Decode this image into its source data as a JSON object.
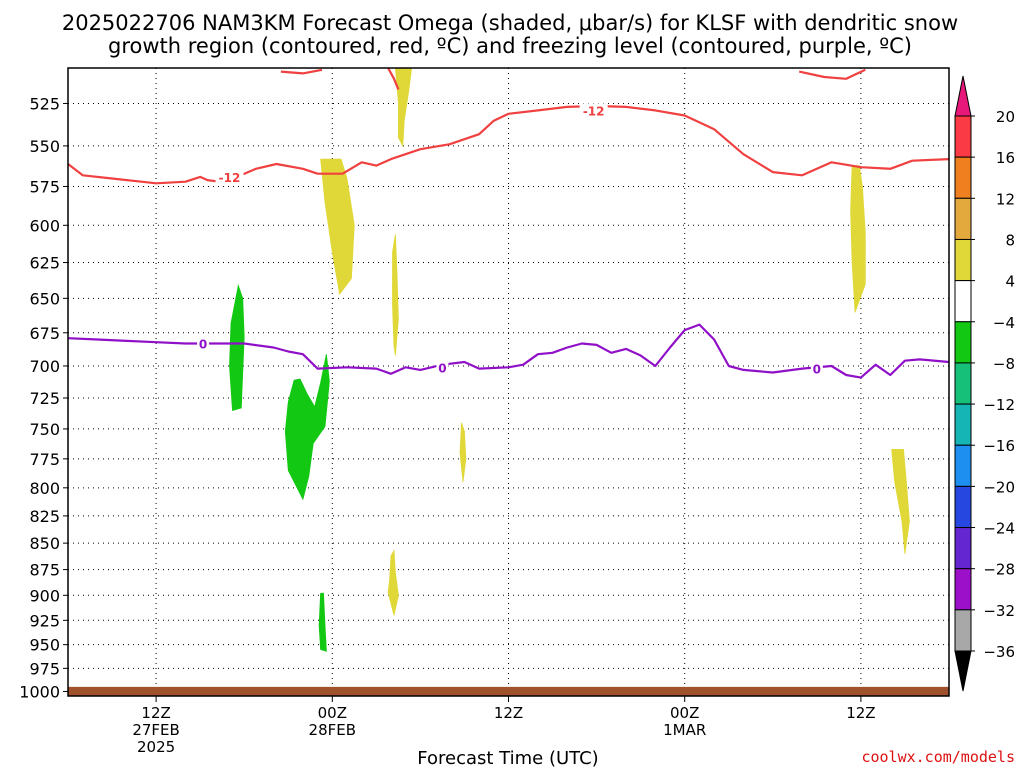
{
  "title_line1": "2025022706 NAM3KM Forecast Omega (shaded, μbar/s) for KLSF with dendritic snow",
  "title_line2": "growth region (contoured, red, ºC) and freezing level (contoured, purple, ºC)",
  "credit": "coolwx.com/models",
  "chart_data": {
    "type": "time-height",
    "title": "2025022706 NAM3KM Forecast Omega (shaded, μbar/s) for KLSF with dendritic snow growth region (contoured, red, ºC) and freezing level (contoured, purple, ºC)",
    "xlabel": "Forecast Time (UTC)",
    "xlim": [
      0,
      60
    ],
    "ylabel": "",
    "ylim": [
      1005,
      505
    ],
    "y_log_scale": true,
    "grid": true,
    "yticks": [
      525,
      550,
      575,
      600,
      625,
      650,
      675,
      700,
      725,
      750,
      775,
      800,
      825,
      850,
      875,
      900,
      925,
      950,
      975,
      1000
    ],
    "xticks": [
      {
        "hour": 6,
        "lines": [
          "12Z",
          "27FEB",
          "2025"
        ]
      },
      {
        "hour": 18,
        "lines": [
          "00Z",
          "28FEB"
        ]
      },
      {
        "hour": 30,
        "lines": [
          "12Z"
        ]
      },
      {
        "hour": 42,
        "lines": [
          "00Z",
          "1MAR"
        ]
      },
      {
        "hour": 54,
        "lines": [
          "12Z"
        ]
      }
    ],
    "colorbar": {
      "levels": [
        20,
        16,
        12,
        8,
        4,
        -4,
        -8,
        -12,
        -16,
        -20,
        -24,
        -28,
        -32,
        -36
      ],
      "colors": [
        "#fa3a44",
        "#f07f1f",
        "#e3a93c",
        "#e0d838",
        "#ffffff",
        "#12c812",
        "#16c078",
        "#15b5b5",
        "#1d8ff0",
        "#2648e0",
        "#6426d0",
        "#9b10c8",
        "#a8a8a8"
      ],
      "max_color": "#e8177a",
      "min_color": "#000000"
    },
    "contours": [
      {
        "label": "-12",
        "color": "#f04040",
        "label_points": [
          [
            11.0,
            569
          ],
          [
            35.8,
            529
          ]
        ],
        "points": [
          [
            0,
            561
          ],
          [
            1,
            568
          ],
          [
            3,
            570
          ],
          [
            5,
            572
          ],
          [
            6,
            573
          ],
          [
            8,
            572
          ],
          [
            9,
            569
          ],
          [
            9.5,
            571
          ],
          [
            10.3,
            572
          ],
          [
            11.5,
            569
          ],
          [
            12.8,
            564
          ],
          [
            14.2,
            561
          ],
          [
            16,
            564
          ],
          [
            17,
            567
          ],
          [
            18.7,
            567
          ],
          [
            20,
            560
          ],
          [
            21,
            562
          ],
          [
            22,
            558
          ],
          [
            24,
            552
          ],
          [
            26,
            549
          ],
          [
            28,
            543
          ],
          [
            29,
            535
          ],
          [
            30,
            531
          ],
          [
            32,
            529
          ],
          [
            34,
            527
          ],
          [
            36,
            526.5
          ],
          [
            38,
            527
          ],
          [
            40,
            529
          ],
          [
            42,
            532
          ],
          [
            44,
            540
          ],
          [
            46,
            555
          ],
          [
            48,
            566
          ],
          [
            50,
            568
          ],
          [
            52,
            560
          ],
          [
            54,
            563
          ],
          [
            56,
            564
          ],
          [
            57.5,
            559
          ],
          [
            60,
            558
          ]
        ]
      },
      {
        "label": "-12",
        "color": "#f04040",
        "points": [
          [
            14.5,
            507
          ],
          [
            16,
            508
          ],
          [
            17.3,
            506
          ]
        ]
      },
      {
        "label": "-12",
        "color": "#f04040",
        "points": [
          [
            49.8,
            507
          ],
          [
            51.5,
            510
          ],
          [
            53,
            511
          ],
          [
            53.5,
            509
          ],
          [
            54.3,
            506
          ]
        ]
      },
      {
        "label": "-12",
        "color": "#f04040",
        "points": [
          [
            21.8,
            505
          ],
          [
            22.2,
            511
          ],
          [
            22.5,
            517
          ]
        ]
      },
      {
        "label": "0",
        "color": "#9010c8",
        "label_points": [
          [
            9.2,
            683
          ],
          [
            25.5,
            701
          ],
          [
            51.0,
            702
          ]
        ],
        "points": [
          [
            0,
            679
          ],
          [
            2,
            680
          ],
          [
            4,
            681
          ],
          [
            6,
            682
          ],
          [
            8,
            683
          ],
          [
            10,
            683
          ],
          [
            12,
            683
          ],
          [
            14,
            686
          ],
          [
            15,
            689
          ],
          [
            16,
            691
          ],
          [
            17,
            702
          ],
          [
            19,
            701
          ],
          [
            21,
            702
          ],
          [
            22,
            706
          ],
          [
            23,
            701
          ],
          [
            24,
            703
          ],
          [
            25.5,
            699
          ],
          [
            27,
            697
          ],
          [
            28,
            702
          ],
          [
            30,
            701
          ],
          [
            31,
            699
          ],
          [
            32,
            691
          ],
          [
            33,
            690
          ],
          [
            34,
            686
          ],
          [
            35,
            683
          ],
          [
            36,
            684
          ],
          [
            37,
            690
          ],
          [
            38,
            687
          ],
          [
            39,
            692
          ],
          [
            40,
            700
          ],
          [
            41,
            686
          ],
          [
            42,
            673
          ],
          [
            43,
            669
          ],
          [
            44,
            680
          ],
          [
            45,
            700
          ],
          [
            46,
            703
          ],
          [
            48,
            705
          ],
          [
            50,
            702
          ],
          [
            52,
            700
          ],
          [
            53,
            707
          ],
          [
            54,
            709
          ],
          [
            55,
            699
          ],
          [
            56,
            707
          ],
          [
            57,
            696
          ],
          [
            58,
            695
          ],
          [
            60,
            697
          ]
        ]
      }
    ],
    "shaded": [
      {
        "value_band": "4 to 8",
        "color": "#e0d838",
        "points": [
          [
            22.3,
            505
          ],
          [
            22.5,
            525
          ],
          [
            22.5,
            545
          ],
          [
            22.8,
            550
          ],
          [
            22.9,
            535
          ],
          [
            23.2,
            518
          ],
          [
            23.4,
            505
          ]
        ]
      },
      {
        "value_band": "4 to 8",
        "color": "#e0d838",
        "points": [
          [
            17.2,
            558
          ],
          [
            17.5,
            585
          ],
          [
            18.0,
            618
          ],
          [
            18.5,
            647
          ],
          [
            19.3,
            636
          ],
          [
            19.5,
            600
          ],
          [
            19.0,
            570
          ],
          [
            18.6,
            558
          ]
        ]
      },
      {
        "value_band": "4 to 8",
        "color": "#e0d838",
        "points": [
          [
            22.1,
            618
          ],
          [
            22.1,
            655
          ],
          [
            22.2,
            685
          ],
          [
            22.3,
            692
          ],
          [
            22.5,
            665
          ],
          [
            22.4,
            630
          ],
          [
            22.3,
            606
          ]
        ]
      },
      {
        "value_band": "4 to 8",
        "color": "#e0d838",
        "points": [
          [
            53.4,
            562
          ],
          [
            53.3,
            590
          ],
          [
            53.4,
            625
          ],
          [
            53.6,
            660
          ],
          [
            54.3,
            640
          ],
          [
            54.3,
            605
          ],
          [
            54.1,
            575
          ],
          [
            53.9,
            562
          ]
        ]
      },
      {
        "value_band": "4 to 8",
        "color": "#e0d838",
        "points": [
          [
            26.8,
            745
          ],
          [
            26.7,
            770
          ],
          [
            26.9,
            795
          ],
          [
            27.1,
            775
          ],
          [
            27.0,
            752
          ]
        ]
      },
      {
        "value_band": "4 to 8",
        "color": "#e0d838",
        "points": [
          [
            56.1,
            767
          ],
          [
            56.3,
            795
          ],
          [
            56.8,
            830
          ],
          [
            57.0,
            860
          ],
          [
            57.3,
            830
          ],
          [
            57.1,
            795
          ],
          [
            56.9,
            767
          ]
        ]
      },
      {
        "value_band": "4 to 8",
        "color": "#e0d838",
        "points": [
          [
            22.0,
            862
          ],
          [
            21.9,
            885
          ],
          [
            21.8,
            897
          ],
          [
            22.2,
            920
          ],
          [
            22.5,
            900
          ],
          [
            22.3,
            878
          ],
          [
            22.2,
            857
          ]
        ]
      },
      {
        "value_band": "-8 to -4",
        "color": "#12c812",
        "points": [
          [
            11.1,
            668
          ],
          [
            11.0,
            700
          ],
          [
            11.2,
            735
          ],
          [
            11.8,
            733
          ],
          [
            11.9,
            705
          ],
          [
            12.0,
            678
          ],
          [
            11.9,
            650
          ],
          [
            11.6,
            641
          ]
        ]
      },
      {
        "value_band": "-8 to -4",
        "color": "#12c812",
        "points": [
          [
            15.0,
            728
          ],
          [
            14.8,
            752
          ],
          [
            15.0,
            785
          ],
          [
            16.0,
            810
          ],
          [
            16.4,
            790
          ],
          [
            16.7,
            762
          ],
          [
            17.5,
            748
          ],
          [
            17.8,
            712
          ],
          [
            17.6,
            691
          ],
          [
            17.2,
            713
          ],
          [
            16.8,
            732
          ],
          [
            16.3,
            722
          ],
          [
            15.8,
            710
          ],
          [
            15.4,
            711
          ]
        ]
      },
      {
        "value_band": "-8 to -4",
        "color": "#12c812",
        "points": [
          [
            17.2,
            898
          ],
          [
            17.1,
            930
          ],
          [
            17.2,
            955
          ],
          [
            17.6,
            957
          ],
          [
            17.5,
            930
          ],
          [
            17.4,
            898
          ]
        ]
      }
    ],
    "terrain": {
      "color": "#a0522d",
      "surface_pressure": 995
    }
  }
}
